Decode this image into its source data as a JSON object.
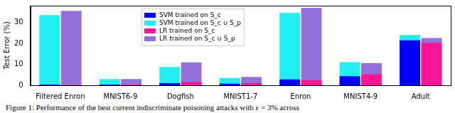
{
  "chart_data": {
    "type": "bar",
    "categories": [
      "Filtered Enron",
      "MNIST6-9",
      "Dogfish",
      "MNIST1-7",
      "Enron",
      "MNIST4-9",
      "Adult"
    ],
    "y_label": "Test Error (%)",
    "ylim": [
      0,
      38
    ],
    "yticks": [
      0,
      10,
      20,
      30
    ],
    "grid": false,
    "legend": "upper center",
    "series": [
      {
        "name": "SVM trained on S_c",
        "color": "#0000ff",
        "values": [
          0.3,
          0.3,
          1.0,
          0.8,
          2.8,
          4.3,
          21.5
        ]
      },
      {
        "name": "SVM trained on S_c ∪ S_p",
        "color": "#22eef2",
        "values": [
          33.5,
          3.0,
          8.7,
          3.5,
          34.5,
          11.0,
          24.0
        ]
      },
      {
        "name": "LR trained on S_c",
        "color": "#ff1493",
        "values": [
          0.2,
          0.3,
          1.5,
          1.0,
          2.5,
          5.3,
          20.3
        ]
      },
      {
        "name": "LR trained on S_c ∪ S_p",
        "color": "#9370db",
        "values": [
          35.5,
          3.0,
          10.9,
          4.0,
          37.0,
          10.6,
          22.6
        ]
      }
    ]
  },
  "caption": "Figure 1: Performance of the best current indiscriminate poisoning attacks with ε = 3% across"
}
